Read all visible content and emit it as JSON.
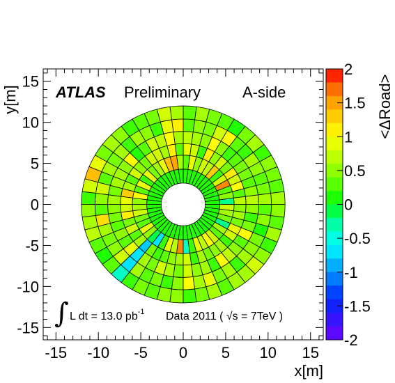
{
  "chart_data": {
    "type": "heatmap",
    "geometry": "polar-sectors",
    "title": "",
    "xlabel": "x[m]",
    "ylabel": "y[m]",
    "xlim": [
      -16.5,
      16.5
    ],
    "ylim": [
      -16.5,
      16.5
    ],
    "xticks": [
      -15,
      -10,
      -5,
      0,
      5,
      10,
      15
    ],
    "yticks": [
      -15,
      -10,
      -5,
      0,
      5,
      10,
      15
    ],
    "colorbar": {
      "label": "<ΔRoad>",
      "range": [
        -2,
        2
      ],
      "ticks": [
        "2",
        "1.5",
        "1",
        "0.5",
        "0",
        "-0.5",
        "-1",
        "-1.5",
        "-2"
      ],
      "bands": 20
    },
    "annotations": {
      "experiment": "ATLAS",
      "status": "Preliminary",
      "side": "A-side",
      "integral_symbol": "∫",
      "lumi_text": "L dt = 13.0 pb",
      "lumi_exp": "-1",
      "data_text": "Data 2011 ( ",
      "sqrt_symbol": "√",
      "energy_text": "s = 7TeV )"
    },
    "ring_radii": [
      2.6,
      4.3,
      6.0,
      7.4,
      8.9,
      10.4,
      12.0
    ],
    "sectors": 48,
    "values": [
      [
        0.1,
        0.12,
        0.13,
        0.11,
        0.09,
        0.1,
        0.12,
        0.11,
        0.11,
        0.1,
        0.12,
        0.13,
        0.11,
        0.09,
        0.1,
        0.12,
        0.11,
        0.11,
        0.1,
        0.12,
        0.13,
        0.11,
        0.09,
        0.1,
        0.12,
        0.11,
        0.11,
        0.1,
        0.12,
        0.13,
        0.11,
        0.09,
        0.1,
        0.12,
        0.11,
        0.11,
        0.1,
        0.12,
        0.13,
        0.11,
        0.09,
        0.1,
        0.12,
        0.11,
        0.11,
        0.1,
        0.12,
        0.13
      ],
      [
        -0.2,
        0.5,
        0.3,
        1.6,
        0.8,
        0.2,
        1.3,
        0.7,
        0.8,
        0.5,
        0.9,
        0.3,
        0.6,
        1.5,
        1.4,
        0.9,
        0.6,
        0.4,
        0.9,
        0.2,
        0.9,
        0.3,
        1.0,
        0.5,
        0.6,
        0.8,
        0.4,
        0.3,
        0.9,
        0.5,
        -0.1,
        -0.7,
        0.2,
        0.9,
        0.7,
        1.6,
        -0.4,
        0.2,
        0.9,
        0.7,
        1.0,
        0.8,
        0.3,
        0.6,
        -0.2,
        0.4,
        0.6,
        0.8
      ],
      [
        0.7,
        0.3,
        1.0,
        0.8,
        1.1,
        0.4,
        0.8,
        0.5,
        1.1,
        0.2,
        0.8,
        0.9,
        0.3,
        1.1,
        0.6,
        0.8,
        0.8,
        0.4,
        0.5,
        0.8,
        0.3,
        0.6,
        1.3,
        0.9,
        0.8,
        1.1,
        0.4,
        0.8,
        0.3,
        0.6,
        -0.8,
        0.4,
        0.2,
        0.3,
        0.5,
        0.6,
        0.8,
        0.2,
        0.6,
        0.4,
        0.5,
        0.6,
        0.2,
        0.8,
        0.9,
        0.4,
        0.6,
        0.5
      ],
      [
        0.7,
        0.5,
        0.3,
        0.4,
        0.4,
        0.3,
        0.2,
        0.5,
        1.0,
        0.5,
        0.6,
        0.7,
        0.6,
        1.0,
        0.7,
        0.8,
        0.3,
        0.1,
        1.0,
        0.5,
        0.6,
        0.6,
        0.4,
        0.6,
        0.5,
        0.4,
        0.3,
        0.5,
        0.3,
        0.9,
        -0.7,
        0.6,
        0.4,
        0.8,
        0.6,
        0.4,
        0.8,
        0.5,
        0.6,
        0.2,
        1.0,
        0.7,
        0.5,
        0.3,
        1.0,
        0.4,
        0.2,
        0.5
      ],
      [
        0.6,
        0.4,
        0.3,
        0.5,
        0.6,
        0.2,
        0.3,
        1.0,
        0.8,
        0.4,
        0.5,
        0.3,
        1.1,
        0.9,
        0.2,
        0.5,
        0.6,
        0.2,
        0.6,
        0.4,
        0.6,
        0.3,
        0.8,
        0.5,
        0.3,
        1.2,
        0.6,
        0.4,
        0.5,
        0.8,
        -0.7,
        0.6,
        0.3,
        0.4,
        0.2,
        0.5,
        1.0,
        0.6,
        0.9,
        0.4,
        0.6,
        0.2,
        0.6,
        0.5,
        0.4,
        0.1,
        0.5,
        0.3
      ],
      [
        0.6,
        0.3,
        0.4,
        0.5,
        0.2,
        0.6,
        0.4,
        0.1,
        0.3,
        0.4,
        0.6,
        0.3,
        0.6,
        0.8,
        0.4,
        0.3,
        0.2,
        0.5,
        0.6,
        0.4,
        0.9,
        1.4,
        0.8,
        0.2,
        0.5,
        0.6,
        0.7,
        0.3,
        0.1,
        0.3,
        -0.4,
        0.2,
        0.4,
        0.3,
        0.5,
        0.5,
        0.2,
        0.4,
        0.6,
        0.3,
        0.6,
        0.6,
        0.8,
        0.5,
        0.2,
        0.6,
        0.3,
        0.5
      ]
    ]
  }
}
